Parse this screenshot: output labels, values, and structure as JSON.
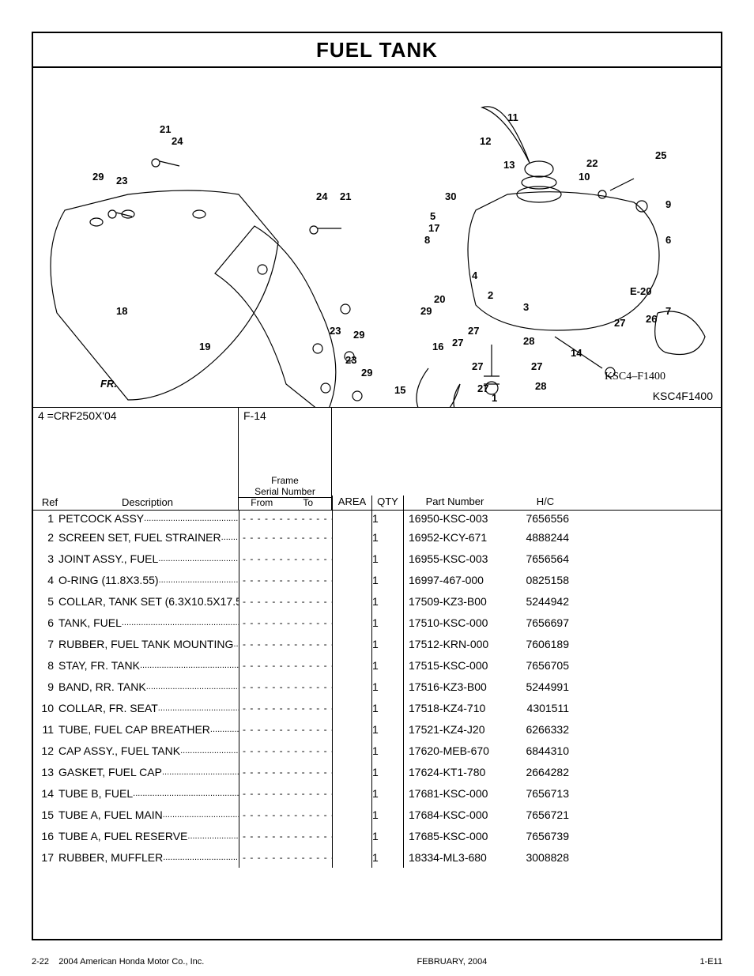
{
  "title": "FUEL TANK",
  "diagram": {
    "code_inside": "KSC4–F1400",
    "code_bottom": "KSC4F1400",
    "fr_label": "FR.",
    "e20_label": "E-20",
    "callouts": [
      "1",
      "2",
      "3",
      "4",
      "5",
      "6",
      "7",
      "8",
      "9",
      "10",
      "11",
      "12",
      "13",
      "14",
      "15",
      "16",
      "17",
      "18",
      "19",
      "20",
      "21",
      "22",
      "23",
      "24",
      "25",
      "26",
      "27",
      "28",
      "29",
      "30"
    ]
  },
  "meta": {
    "model_line": "4 =CRF250X'04",
    "section": "F-14",
    "frame_label": "Frame",
    "serial_label": "Serial Number"
  },
  "headers": {
    "ref": "Ref",
    "description": "Description",
    "from": "From",
    "to": "To",
    "area": "AREA",
    "qty": "QTY",
    "part": "Part Number",
    "hc": "H/C"
  },
  "rows": [
    {
      "ref": "1",
      "desc": "PETCOCK ASSY",
      "qty": "1",
      "part": "16950-KSC-003",
      "hc": "7656556"
    },
    {
      "ref": "2",
      "desc": "SCREEN SET, FUEL STRAINER",
      "qty": "1",
      "part": "16952-KCY-671",
      "hc": "4888244"
    },
    {
      "ref": "3",
      "desc": "JOINT ASSY., FUEL",
      "qty": "1",
      "part": "16955-KSC-003",
      "hc": "7656564"
    },
    {
      "ref": "4",
      "desc": "O-RING (11.8X3.55)",
      "qty": "1",
      "part": "16997-467-000",
      "hc": "0825158"
    },
    {
      "ref": "5",
      "desc": "COLLAR, TANK SET (6.3X10.5X17.5)",
      "qty": "1",
      "part": "17509-KZ3-B00",
      "hc": "5244942"
    },
    {
      "ref": "6",
      "desc": "TANK, FUEL",
      "qty": "1",
      "part": "17510-KSC-000",
      "hc": "7656697"
    },
    {
      "ref": "7",
      "desc": "RUBBER, FUEL TANK MOUNTING",
      "qty": "1",
      "part": "17512-KRN-000",
      "hc": "7606189"
    },
    {
      "ref": "8",
      "desc": "STAY, FR. TANK",
      "qty": "1",
      "part": "17515-KSC-000",
      "hc": "7656705"
    },
    {
      "ref": "9",
      "desc": "BAND, RR. TANK",
      "qty": "1",
      "part": "17516-KZ3-B00",
      "hc": "5244991"
    },
    {
      "ref": "10",
      "desc": "COLLAR, FR. SEAT",
      "qty": "1",
      "part": "17518-KZ4-710",
      "hc": "4301511"
    },
    {
      "ref": "11",
      "desc": "TUBE, FUEL CAP BREATHER",
      "qty": "1",
      "part": "17521-KZ4-J20",
      "hc": "6266332"
    },
    {
      "ref": "12",
      "desc": "CAP ASSY., FUEL TANK",
      "qty": "1",
      "part": "17620-MEB-670",
      "hc": "6844310"
    },
    {
      "ref": "13",
      "desc": "GASKET, FUEL CAP",
      "qty": "1",
      "part": "17624-KT1-780",
      "hc": "2664282"
    },
    {
      "ref": "14",
      "desc": "TUBE B, FUEL",
      "qty": "1",
      "part": "17681-KSC-000",
      "hc": "7656713"
    },
    {
      "ref": "15",
      "desc": "TUBE A, FUEL MAIN",
      "qty": "1",
      "part": "17684-KSC-000",
      "hc": "7656721"
    },
    {
      "ref": "16",
      "desc": "TUBE A, FUEL RESERVE",
      "qty": "1",
      "part": "17685-KSC-000",
      "hc": "7656739"
    },
    {
      "ref": "17",
      "desc": "RUBBER, MUFFLER",
      "qty": "1",
      "part": "18334-ML3-680",
      "hc": "3008828"
    }
  ],
  "footer": {
    "left_page": "2-22",
    "copyright": "2004  American Honda Motor Co., Inc.",
    "center": "FEBRUARY, 2004",
    "right": "1-E11"
  },
  "style": {
    "dots": "- - - - - - - -  - - - - - - - -",
    "desc_dots": "..............................................................."
  }
}
